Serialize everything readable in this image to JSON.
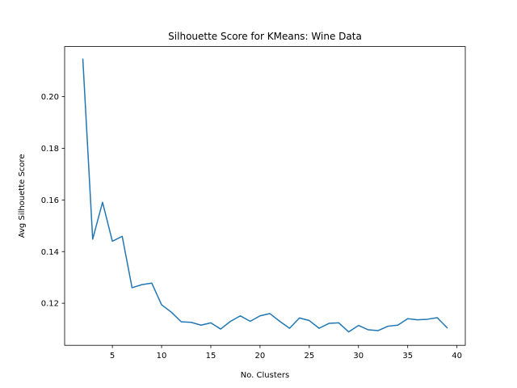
{
  "chart_data": {
    "type": "line",
    "title": "Silhouette Score for KMeans: Wine Data",
    "xlabel": "No. Clusters",
    "ylabel": "Avg Silhouette Score",
    "xlim": [
      0.15,
      40.85
    ],
    "ylim": [
      0.1037,
      0.2194
    ],
    "xticks": [
      5,
      10,
      15,
      20,
      25,
      30,
      35,
      40
    ],
    "xtick_labels": [
      "5",
      "10",
      "15",
      "20",
      "25",
      "30",
      "35",
      "40"
    ],
    "yticks": [
      0.12,
      0.14,
      0.16,
      0.18,
      0.2
    ],
    "ytick_labels": [
      "0.12",
      "0.14",
      "0.16",
      "0.18",
      "0.20"
    ],
    "grid": false,
    "series": [
      {
        "name": "silhouette",
        "color": "#1f77b4",
        "x": [
          2,
          3,
          4,
          5,
          6,
          7,
          8,
          9,
          10,
          11,
          12,
          13,
          14,
          15,
          16,
          17,
          18,
          19,
          20,
          21,
          22,
          23,
          24,
          25,
          26,
          27,
          28,
          29,
          30,
          31,
          32,
          33,
          34,
          35,
          36,
          37,
          38,
          39
        ],
        "values": [
          0.2145,
          0.1448,
          0.1591,
          0.144,
          0.1459,
          0.126,
          0.1272,
          0.1278,
          0.1194,
          0.1165,
          0.1128,
          0.1126,
          0.1115,
          0.1124,
          0.11,
          0.113,
          0.1151,
          0.113,
          0.1151,
          0.116,
          0.113,
          0.1103,
          0.1143,
          0.1133,
          0.1103,
          0.1122,
          0.1124,
          0.1089,
          0.1114,
          0.1097,
          0.1094,
          0.1111,
          0.1115,
          0.114,
          0.1136,
          0.1138,
          0.1144,
          0.1105
        ]
      }
    ]
  }
}
